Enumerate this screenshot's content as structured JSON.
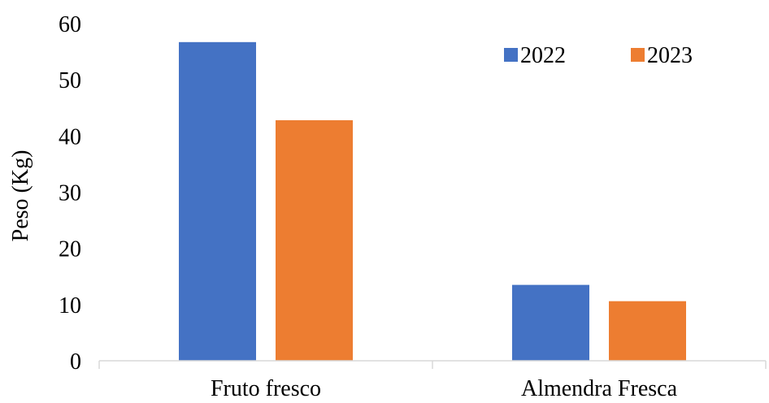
{
  "chart_data": {
    "type": "bar",
    "categories": [
      "Fruto fresco",
      "Almendra Fresca"
    ],
    "series": [
      {
        "name": "2022",
        "values": [
          56.7,
          13.5
        ],
        "color": "#4472C4"
      },
      {
        "name": "2023",
        "values": [
          42.8,
          10.6
        ],
        "color": "#ED7D31"
      }
    ],
    "title": "",
    "xlabel": "",
    "ylabel": "Peso (Kg)",
    "ylim": [
      0,
      60
    ],
    "yticks": [
      "0",
      "10",
      "20",
      "30",
      "40",
      "50",
      "60"
    ],
    "grid": false,
    "legend": "top-right"
  }
}
